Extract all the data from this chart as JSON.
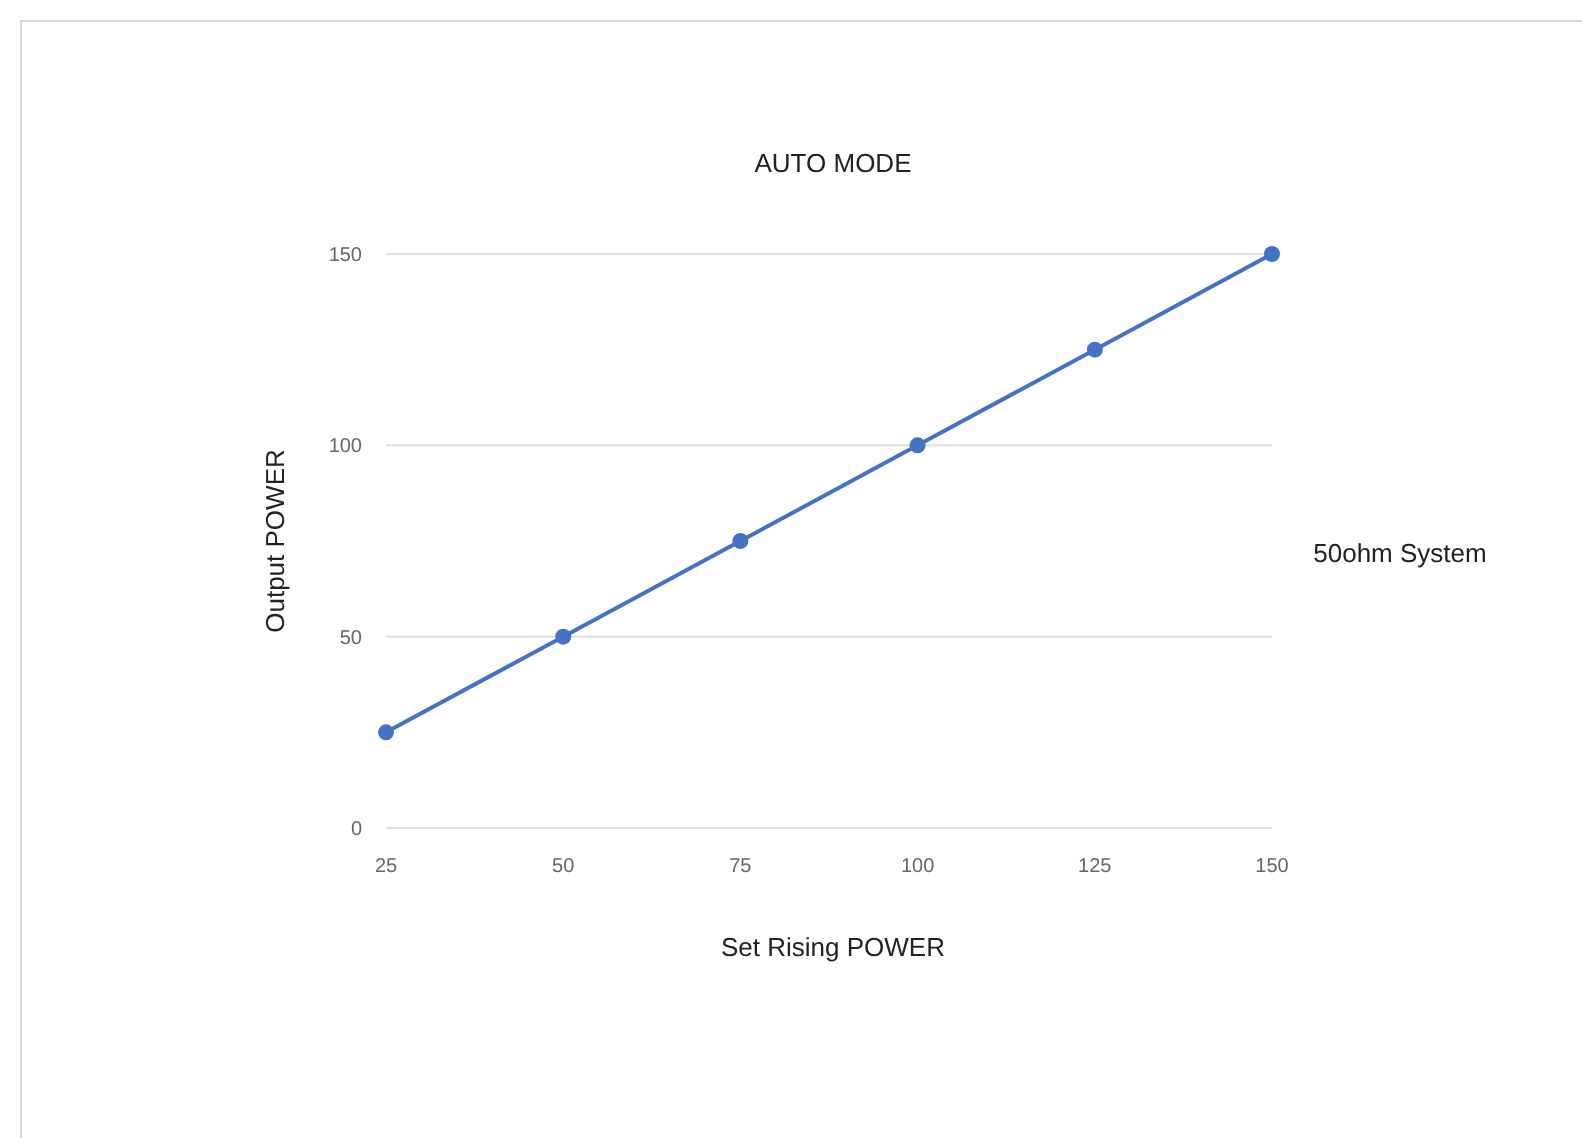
{
  "chart_data": {
    "type": "line",
    "title": "AUTO MODE",
    "xlabel": "Set Rising POWER",
    "ylabel": "Output POWER",
    "annotations": [
      "50ohm System"
    ],
    "x": [
      25,
      50,
      75,
      100,
      125,
      150
    ],
    "series": [
      {
        "color": "#4472c4",
        "values": [
          25,
          50,
          75,
          100,
          125,
          150
        ]
      }
    ],
    "xlim": [
      25,
      150
    ],
    "xticks": [
      25,
      50,
      75,
      100,
      125,
      150
    ],
    "ylim": [
      0,
      150
    ],
    "yticks": [
      0,
      50,
      100,
      150
    ],
    "grid": "y",
    "marker": "circle"
  }
}
